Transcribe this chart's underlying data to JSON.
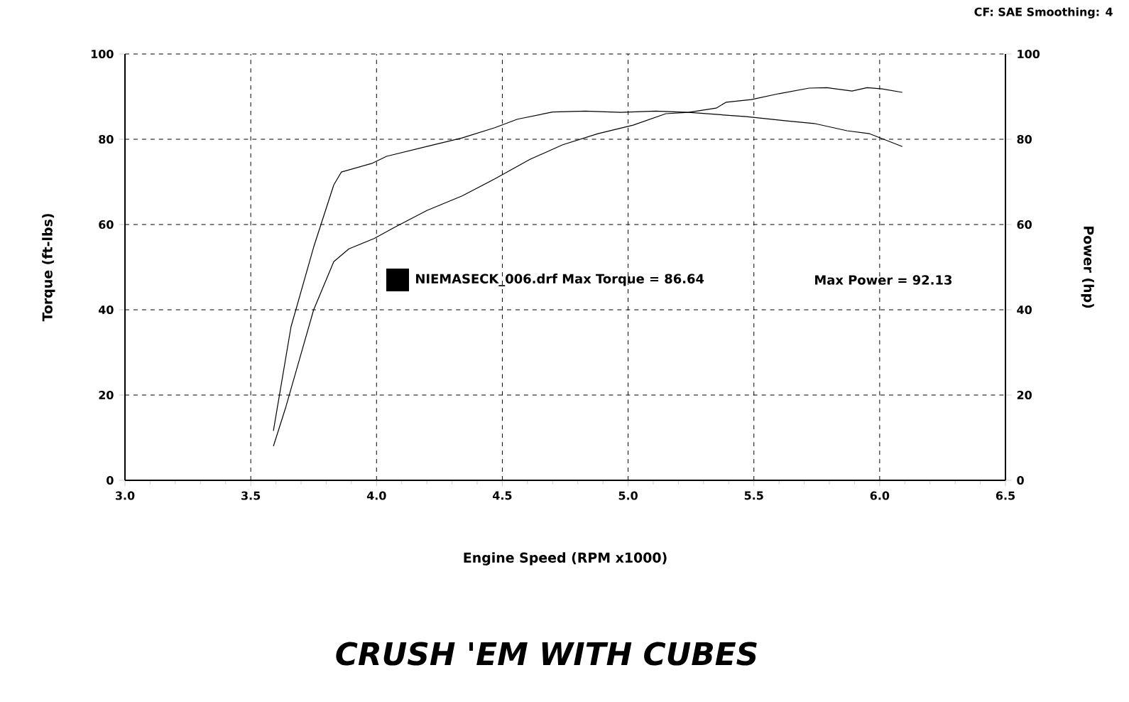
{
  "chart_data": {
    "type": "line",
    "xlabel": "Engine Speed (RPM x1000)",
    "ylabel": "Torque (ft-lbs)",
    "y2label": "Power (hp)",
    "annotations": [
      "CF: SAE  Smoothing: 4",
      "NIEMASECK_006.drf Max Torque = 86.64",
      "Max Power = 92.13",
      "CRUSH 'EM WITH CUBES"
    ],
    "xlim": [
      3.0,
      6.5
    ],
    "xticks": [
      {
        "value": 3.0,
        "label": "3.0"
      },
      {
        "value": 3.5,
        "label": "3.5"
      },
      {
        "value": 4.0,
        "label": "4.0"
      },
      {
        "value": 4.5,
        "label": "4.5"
      },
      {
        "value": 5.0,
        "label": "5.0"
      },
      {
        "value": 5.5,
        "label": "5.5"
      },
      {
        "value": 6.0,
        "label": "6.0"
      },
      {
        "value": 6.5,
        "label": "6.5"
      }
    ],
    "ylim": [
      0,
      100
    ],
    "yticks": [
      0,
      20,
      40,
      60,
      80,
      100
    ],
    "y2lim": [
      0,
      100
    ],
    "y2ticks": [
      0,
      20,
      40,
      60,
      80,
      100
    ],
    "grid": true,
    "marker": "none",
    "line_style": "solid",
    "series": [
      {
        "color": "#000000",
        "x": [
          3.59,
          3.66,
          3.75,
          3.83,
          3.86,
          3.98,
          4.04,
          4.2,
          4.34,
          4.47,
          4.56,
          4.7,
          4.83,
          4.97,
          5.11,
          5.24,
          5.38,
          5.47,
          5.63,
          5.74,
          5.87,
          5.96,
          6.09
        ],
        "values": [
          11.6,
          36,
          54.7,
          69.3,
          72.3,
          74.3,
          76,
          78.3,
          80.3,
          82.7,
          84.7,
          86.4,
          86.6,
          86.3,
          86.6,
          86.3,
          85.7,
          85.3,
          84.3,
          83.7,
          82,
          81.3,
          78.3
        ]
      },
      {
        "color": "#000000",
        "axis": "y2",
        "x": [
          3.59,
          3.64,
          3.75,
          3.83,
          3.89,
          3.99,
          4.07,
          4.2,
          4.34,
          4.47,
          4.61,
          4.74,
          4.88,
          5.02,
          5.15,
          5.24,
          5.35,
          5.39,
          5.49,
          5.6,
          5.72,
          5.79,
          5.89,
          5.95,
          6.01,
          6.09
        ],
        "values": [
          8,
          17.3,
          40,
          51.3,
          54.3,
          56.7,
          59.3,
          63.3,
          66.7,
          70.7,
          75.3,
          78.7,
          81.3,
          83.3,
          86,
          86.3,
          87.3,
          88.7,
          89.3,
          90.7,
          92,
          92.1,
          91.3,
          92.1,
          91.8,
          91
        ]
      }
    ]
  }
}
